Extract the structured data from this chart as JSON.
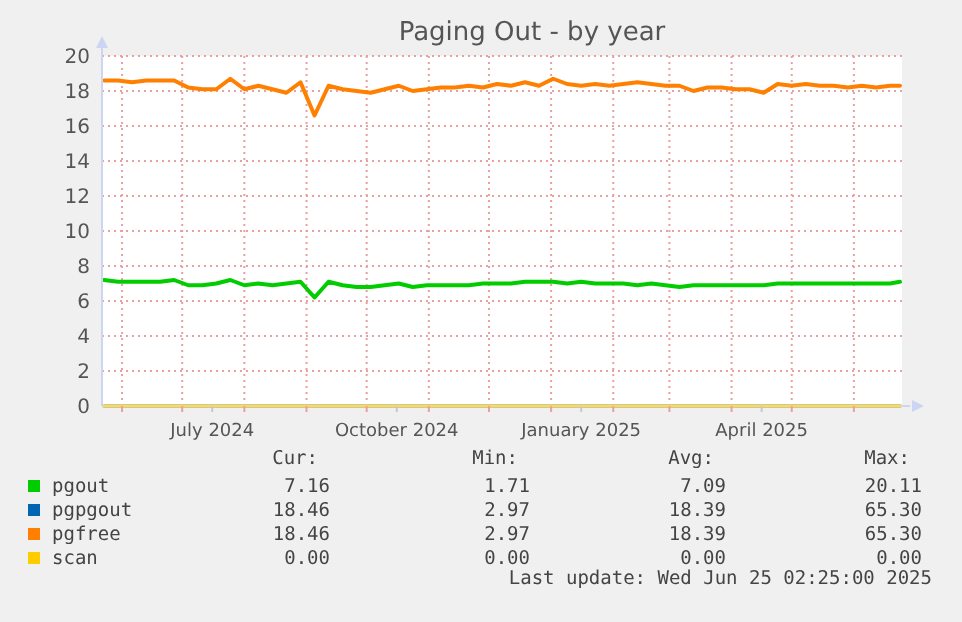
{
  "chart_data": {
    "type": "line",
    "title": "Paging Out - by year",
    "x": [
      "2024-05-23",
      "2024-05-30",
      "2024-06-06",
      "2024-06-13",
      "2024-06-20",
      "2024-06-27",
      "2024-07-04",
      "2024-07-11",
      "2024-07-18",
      "2024-07-25",
      "2024-08-01",
      "2024-08-08",
      "2024-08-15",
      "2024-08-22",
      "2024-08-29",
      "2024-09-05",
      "2024-09-12",
      "2024-09-19",
      "2024-09-26",
      "2024-10-03",
      "2024-10-10",
      "2024-10-17",
      "2024-10-24",
      "2024-10-31",
      "2024-11-07",
      "2024-11-14",
      "2024-11-21",
      "2024-11-28",
      "2024-12-05",
      "2024-12-12",
      "2024-12-19",
      "2024-12-26",
      "2025-01-02",
      "2025-01-09",
      "2025-01-16",
      "2025-01-23",
      "2025-01-30",
      "2025-02-06",
      "2025-02-13",
      "2025-02-20",
      "2025-02-27",
      "2025-03-06",
      "2025-03-13",
      "2025-03-20",
      "2025-03-27",
      "2025-04-03",
      "2025-04-10",
      "2025-04-17",
      "2025-04-24",
      "2025-05-01",
      "2025-05-08",
      "2025-05-15",
      "2025-05-22",
      "2025-05-29",
      "2025-06-05",
      "2025-06-12",
      "2025-06-19",
      "2025-06-24"
    ],
    "series": [
      {
        "name": "pgout",
        "color": "#00cc00",
        "values": [
          7.2,
          7.1,
          7.1,
          7.1,
          7.1,
          7.2,
          6.9,
          6.9,
          7.0,
          7.2,
          6.9,
          7.0,
          6.9,
          7.0,
          7.1,
          6.2,
          7.1,
          6.9,
          6.8,
          6.8,
          6.9,
          7.0,
          6.8,
          6.9,
          6.9,
          6.9,
          6.9,
          7.0,
          7.0,
          7.0,
          7.1,
          7.1,
          7.1,
          7.0,
          7.1,
          7.0,
          7.0,
          7.0,
          6.9,
          7.0,
          6.9,
          6.8,
          6.9,
          6.9,
          6.9,
          6.9,
          6.9,
          6.9,
          7.0,
          7.0,
          7.0,
          7.0,
          7.0,
          7.0,
          7.0,
          7.0,
          7.0,
          7.1
        ]
      },
      {
        "name": "pgpgout",
        "color": "#0066b3",
        "values": [
          null,
          null,
          null,
          null,
          null,
          null,
          null,
          null,
          null,
          null,
          null,
          null,
          null,
          null,
          null,
          null,
          null,
          null,
          null,
          null,
          null,
          null,
          null,
          null,
          null,
          null,
          null,
          null,
          null,
          null,
          null,
          null,
          null,
          null,
          null,
          null,
          null,
          null,
          null,
          null,
          null,
          null,
          null,
          null,
          null,
          null,
          null,
          null,
          null,
          null,
          null,
          null,
          null,
          null,
          null,
          null,
          null,
          null
        ]
      },
      {
        "name": "pgfree",
        "color": "#ff8000",
        "values": [
          18.6,
          18.6,
          18.5,
          18.6,
          18.6,
          18.6,
          18.2,
          18.1,
          18.1,
          18.7,
          18.1,
          18.3,
          18.1,
          17.9,
          18.5,
          16.6,
          18.3,
          18.1,
          18.0,
          17.9,
          18.1,
          18.3,
          18.0,
          18.1,
          18.2,
          18.2,
          18.3,
          18.2,
          18.4,
          18.3,
          18.5,
          18.3,
          18.7,
          18.4,
          18.3,
          18.4,
          18.3,
          18.4,
          18.5,
          18.4,
          18.3,
          18.3,
          18.0,
          18.2,
          18.2,
          18.1,
          18.1,
          17.9,
          18.4,
          18.3,
          18.4,
          18.3,
          18.3,
          18.2,
          18.3,
          18.2,
          18.3,
          18.3
        ]
      },
      {
        "name": "scan",
        "color": "#ffcc00",
        "values": [
          0,
          0,
          0,
          0,
          0,
          0,
          0,
          0,
          0,
          0,
          0,
          0,
          0,
          0,
          0,
          0,
          0,
          0,
          0,
          0,
          0,
          0,
          0,
          0,
          0,
          0,
          0,
          0,
          0,
          0,
          0,
          0,
          0,
          0,
          0,
          0,
          0,
          0,
          0,
          0,
          0,
          0,
          0,
          0,
          0,
          0,
          0,
          0,
          0,
          0,
          0,
          0,
          0,
          0,
          0,
          0,
          0,
          0
        ]
      }
    ],
    "xlim": [
      "2024-05-22",
      "2025-06-25"
    ],
    "xticks": [
      {
        "value": "2024-06-01",
        "label": null
      },
      {
        "value": "2024-07-01",
        "label": null
      },
      {
        "value": "2024-07-16",
        "label": "July 2024"
      },
      {
        "value": "2024-08-01",
        "label": null
      },
      {
        "value": "2024-09-01",
        "label": null
      },
      {
        "value": "2024-10-01",
        "label": null
      },
      {
        "value": "2024-10-16",
        "label": "October 2024"
      },
      {
        "value": "2024-11-01",
        "label": null
      },
      {
        "value": "2024-12-01",
        "label": null
      },
      {
        "value": "2025-01-01",
        "label": null
      },
      {
        "value": "2025-01-16",
        "label": "January 2025"
      },
      {
        "value": "2025-02-01",
        "label": null
      },
      {
        "value": "2025-03-01",
        "label": null
      },
      {
        "value": "2025-04-01",
        "label": null
      },
      {
        "value": "2025-04-16",
        "label": "April 2025"
      },
      {
        "value": "2025-05-01",
        "label": null
      },
      {
        "value": "2025-06-01",
        "label": null
      }
    ],
    "ylim": [
      0,
      20
    ],
    "yticks": [
      0,
      2,
      4,
      6,
      8,
      10,
      12,
      14,
      16,
      18,
      20
    ],
    "grid": true,
    "legend": "bottom",
    "annotations": [
      "Cur:",
      "Min:",
      "Avg:",
      "Max:",
      "7.16",
      "1.71",
      "7.09",
      "20.11",
      "18.46",
      "2.97",
      "18.39",
      "65.30",
      "18.46",
      "2.97",
      "18.39",
      "65.30",
      "0.00",
      "0.00",
      "0.00",
      "0.00",
      "Last update: Wed Jun 25 02:25:00 2025"
    ]
  }
}
